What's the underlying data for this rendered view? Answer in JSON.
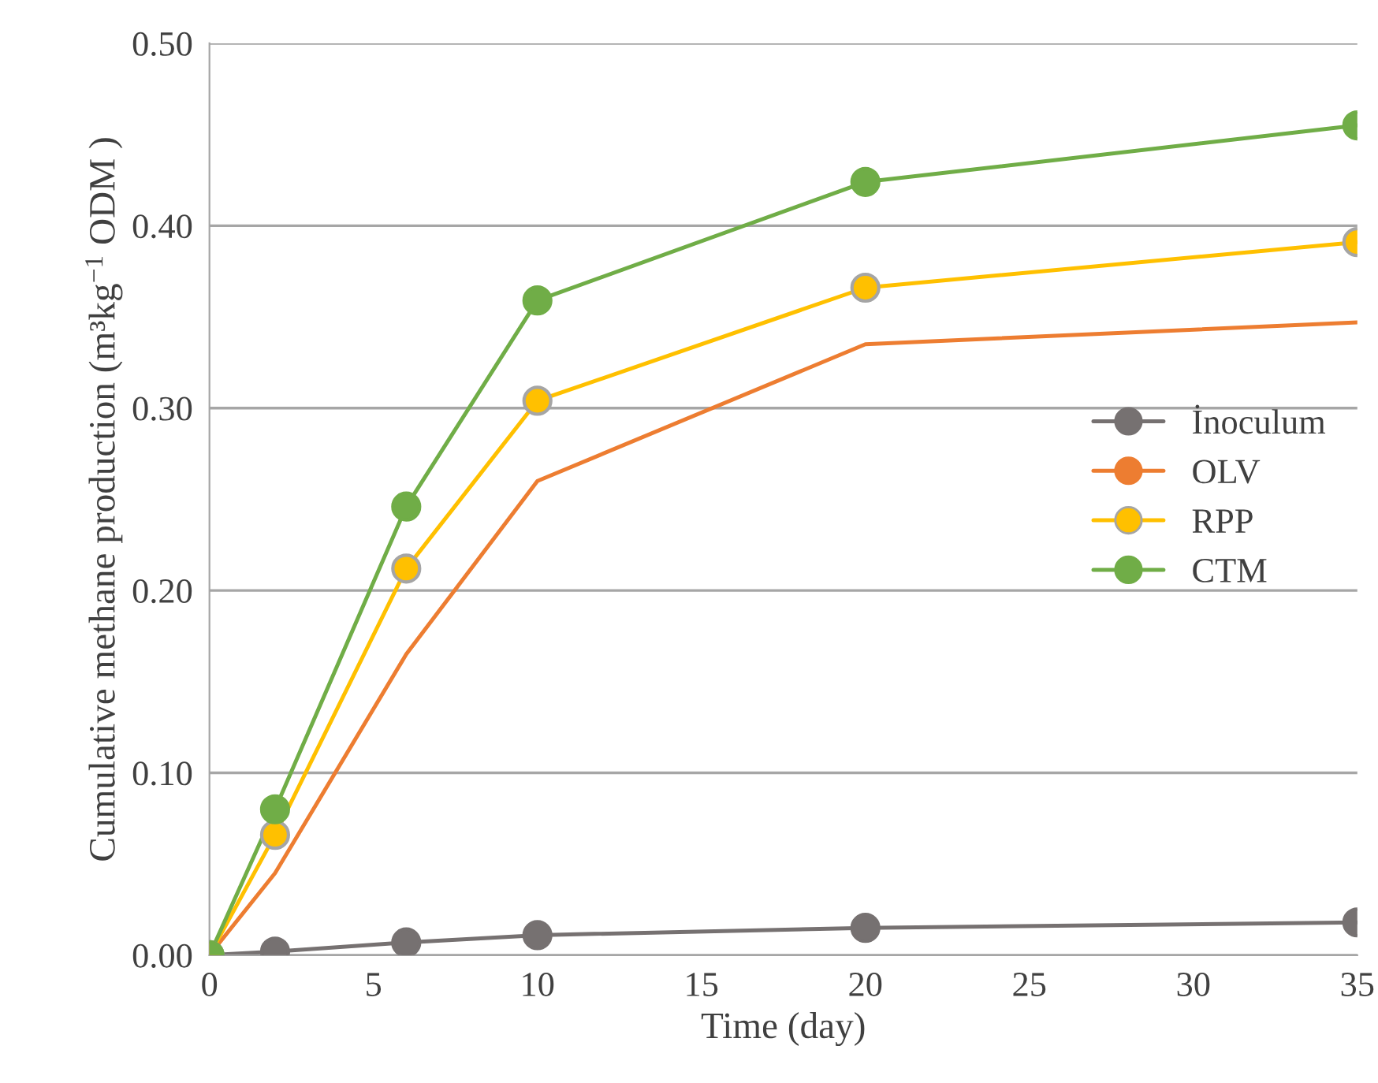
{
  "chart_data": {
    "type": "line",
    "xlabel": "Time (day)",
    "ylabel": "Cumulative methane production (m³kg$^{−1}$ ODM )",
    "x": [
      0,
      2,
      6,
      10,
      20,
      35
    ],
    "series": [
      {
        "name": "İnoculum",
        "color": "#767171",
        "values": [
          0,
          0.002,
          0.007,
          0.011,
          0.015,
          0.018
        ]
      },
      {
        "name": "OLV",
        "color": "#ed7d31",
        "values": [
          0,
          0.045,
          0.165,
          0.26,
          0.335,
          0.347
        ],
        "marker": "none"
      },
      {
        "name": "RPP",
        "color": "#ffc000",
        "values": [
          0,
          0.066,
          0.212,
          0.304,
          0.366,
          0.391
        ]
      },
      {
        "name": "CTM",
        "color": "#70ad47",
        "values": [
          0,
          0.08,
          0.246,
          0.359,
          0.424,
          0.455
        ]
      }
    ],
    "xlim": [
      0,
      35
    ],
    "xticks": [
      0,
      5,
      10,
      15,
      20,
      25,
      30,
      35
    ],
    "ylim": [
      0,
      0.5
    ],
    "yticks": [
      {
        "value": 0,
        "label": "0.00"
      },
      {
        "value": 0.1,
        "label": "0.10"
      },
      {
        "value": 0.2,
        "label": "0.20"
      },
      {
        "value": 0.3,
        "label": "0.30"
      },
      {
        "value": 0.4,
        "label": "0.40"
      },
      {
        "value": 0.5,
        "label": "0.50"
      }
    ],
    "grid": "y",
    "legend": "center right",
    "marker": "circle",
    "line_style": "solid"
  }
}
